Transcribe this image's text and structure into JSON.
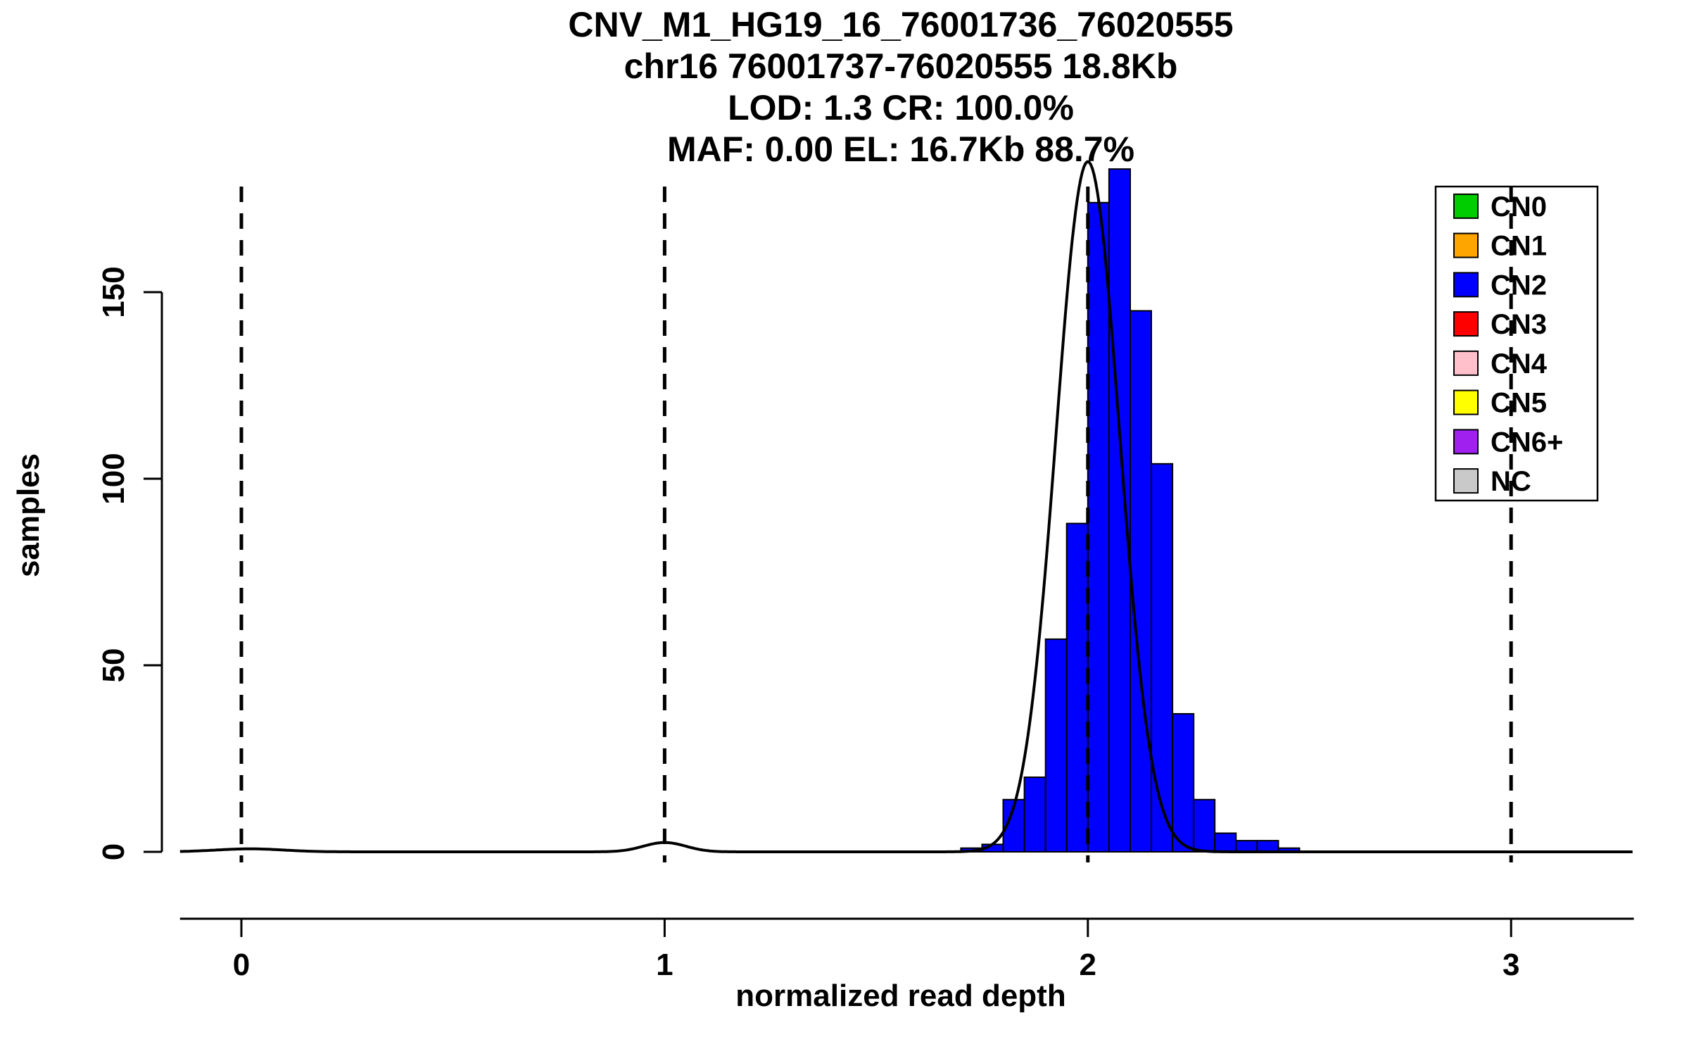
{
  "chart_data": {
    "type": "bar",
    "title_lines": [
      "CNV_M1_HG19_16_76001736_76020555",
      "chr16 76001737-76020555 18.8Kb",
      "LOD: 1.3 CR: 100.0%",
      "MAF: 0.00 EL: 16.7Kb 88.7%"
    ],
    "xlabel": "normalized read depth",
    "ylabel": "samples",
    "x_ticks": [
      0,
      1,
      2,
      3
    ],
    "y_ticks": [
      0,
      50,
      100,
      150
    ],
    "dashed_lines_x": [
      0,
      1,
      2,
      3
    ],
    "xlim": [
      -0.145,
      3.29
    ],
    "ylim": [
      0,
      185
    ],
    "grid": false,
    "legend_position": "top-right",
    "bars": {
      "color": "#0000FF",
      "border_color": "#000000",
      "bin_start": 1.7,
      "bin_width": 0.05,
      "counts": [
        1,
        2,
        14,
        20,
        57,
        88,
        174,
        183,
        145,
        104,
        37,
        14,
        5,
        3,
        3,
        1
      ]
    },
    "curve": {
      "color": "#000000",
      "components": [
        {
          "mu": 2.0,
          "sigma": 0.075,
          "amp": 185
        },
        {
          "mu": 1.0,
          "sigma": 0.05,
          "amp": 2.5
        },
        {
          "mu": 0.02,
          "sigma": 0.08,
          "amp": 0.8
        }
      ]
    },
    "legend": [
      {
        "label": "CN0",
        "color": "#00CD00"
      },
      {
        "label": "CN1",
        "color": "#FFA500"
      },
      {
        "label": "CN2",
        "color": "#0000FF"
      },
      {
        "label": "CN3",
        "color": "#FF0000"
      },
      {
        "label": "CN4",
        "color": "#FFC0CB"
      },
      {
        "label": "CN5",
        "color": "#FFFF00"
      },
      {
        "label": "CN6+",
        "color": "#A020F0"
      },
      {
        "label": "NC",
        "color": "#C9C9C9"
      }
    ]
  }
}
